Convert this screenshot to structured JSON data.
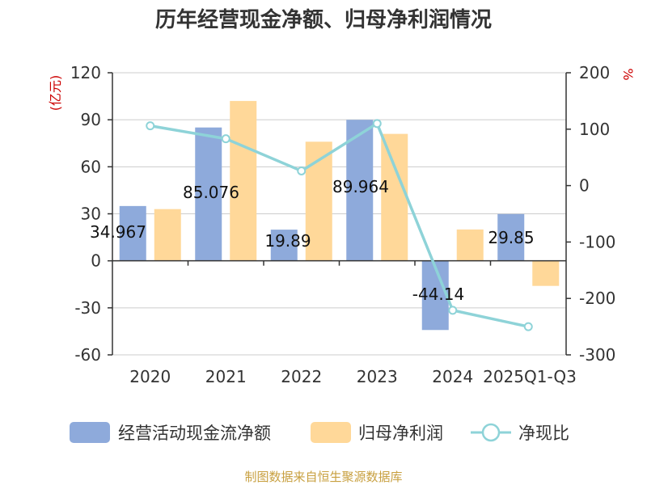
{
  "chart_data": {
    "type": "bar",
    "title": "历年经营现金净额、归母净利润情况",
    "categories": [
      "2020",
      "2021",
      "2022",
      "2023",
      "2024",
      "2025Q1-Q3"
    ],
    "series": [
      {
        "name": "经营活动现金流净额",
        "type": "bar",
        "axis": "left",
        "color": "#8eaadb",
        "values": [
          34.967,
          85.076,
          19.89,
          89.964,
          -44.14,
          29.85
        ],
        "labels": [
          "34.967",
          "85.076",
          "19.89",
          "89.964",
          "-44.14",
          "29.85"
        ]
      },
      {
        "name": "归母净利润",
        "type": "bar",
        "axis": "left",
        "color": "#ffd899",
        "values": [
          33,
          102,
          76,
          81,
          20,
          -16
        ]
      },
      {
        "name": "净现比",
        "type": "line",
        "axis": "right",
        "color": "#8ed3d8",
        "values": [
          106,
          83,
          26,
          110,
          -221,
          -250
        ]
      }
    ],
    "left_axis": {
      "unit": "(亿元)",
      "min": -60,
      "max": 120,
      "ticks": [
        -60,
        -30,
        0,
        30,
        60,
        90,
        120
      ]
    },
    "right_axis": {
      "unit": "%",
      "min": -300,
      "max": 200,
      "ticks": [
        -300,
        -200,
        -100,
        0,
        100,
        200
      ]
    },
    "grid": true,
    "legend_position": "bottom",
    "colors": {
      "unit_label": "#cc0000",
      "source": "#c8a040",
      "axis": "#333333",
      "grid": "#cccccc"
    }
  },
  "source": "制图数据来自恒生聚源数据库"
}
